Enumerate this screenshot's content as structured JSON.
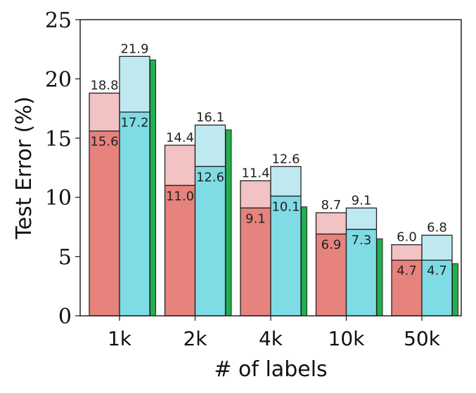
{
  "chart_data": {
    "type": "bar",
    "xlabel": "# of labels",
    "ylabel": "Test Error (%)",
    "ylim": [
      0,
      25
    ],
    "yticks": [
      "0",
      "5",
      "10",
      "15",
      "20",
      "25"
    ],
    "categories": [
      "1k",
      "2k",
      "4k",
      "10k",
      "50k"
    ],
    "grid": false,
    "legend": "none",
    "groups": [
      {
        "color_light": "#f3c2c2",
        "color_dark": "#e5837c",
        "upper_values": [
          18.8,
          14.4,
          11.4,
          8.7,
          6.0
        ],
        "lower_values": [
          15.6,
          11.0,
          9.1,
          6.9,
          4.7
        ],
        "upper_labels": [
          "18.8",
          "14.4",
          "11.4",
          "8.7",
          "6.0"
        ],
        "lower_labels": [
          "15.6",
          "11.0",
          "9.1",
          "6.9",
          "4.7"
        ]
      },
      {
        "color_light": "#bfe9f1",
        "color_dark": "#7fdbe4",
        "upper_values": [
          21.9,
          16.1,
          12.6,
          9.1,
          6.8
        ],
        "lower_values": [
          17.2,
          12.6,
          10.1,
          7.3,
          4.7
        ],
        "upper_labels": [
          "21.9",
          "16.1",
          "12.6",
          "9.1",
          "6.8"
        ],
        "lower_labels": [
          "17.2",
          "12.6",
          "10.1",
          "7.3",
          "4.7"
        ]
      }
    ],
    "thin_series": {
      "color": "#22b04c",
      "values": [
        21.6,
        15.7,
        9.2,
        6.5,
        4.4
      ]
    }
  }
}
